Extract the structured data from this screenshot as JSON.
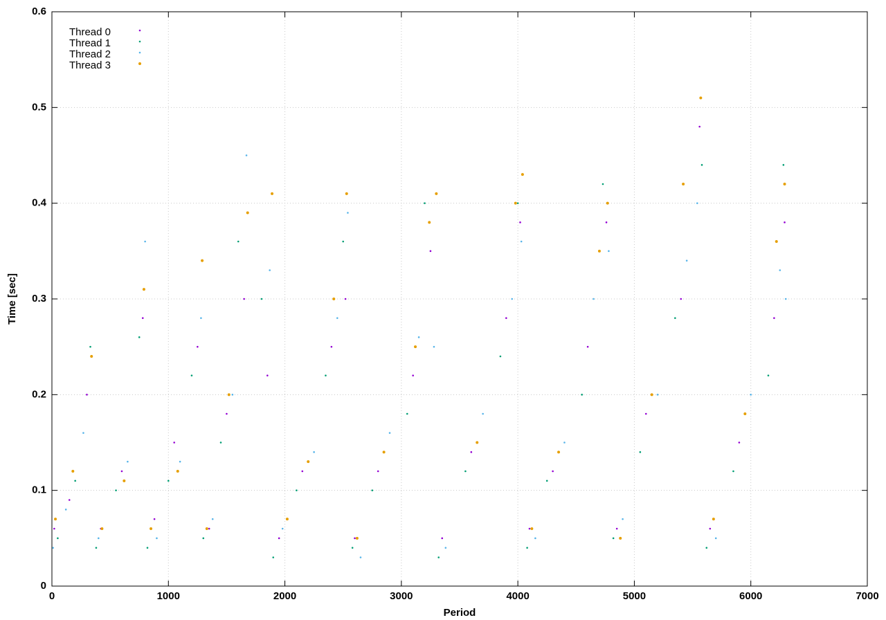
{
  "chart_data": {
    "type": "scatter",
    "xlabel": "Period",
    "ylabel": "Time [sec]",
    "xlim": [
      0,
      7000
    ],
    "xticks": [
      0,
      1000,
      2000,
      3000,
      4000,
      5000,
      6000,
      7000
    ],
    "ylim": [
      0,
      0.6
    ],
    "yticks": [
      0,
      0.1,
      0.2,
      0.3,
      0.4,
      0.5,
      0.6
    ],
    "grid": true,
    "legend": "top-left",
    "series": [
      {
        "name": "Thread 0",
        "color": "#9400d3",
        "x": [
          20,
          150,
          300,
          420,
          600,
          780,
          880,
          1050,
          1250,
          1350,
          1500,
          1650,
          1850,
          1950,
          2150,
          2400,
          2520,
          2600,
          2800,
          3100,
          3250,
          3350,
          3600,
          3900,
          4020,
          4100,
          4300,
          4600,
          4760,
          4850,
          5100,
          5400,
          5560,
          5650,
          5900,
          6200,
          6290
        ],
        "values": [
          0.06,
          0.09,
          0.2,
          0.06,
          0.12,
          0.28,
          0.07,
          0.15,
          0.25,
          0.06,
          0.18,
          0.3,
          0.22,
          0.05,
          0.12,
          0.25,
          0.3,
          0.05,
          0.12,
          0.22,
          0.35,
          0.05,
          0.14,
          0.28,
          0.38,
          0.06,
          0.12,
          0.25,
          0.38,
          0.06,
          0.18,
          0.3,
          0.48,
          0.06,
          0.15,
          0.28,
          0.38
        ]
      },
      {
        "name": "Thread 1",
        "color": "#009e73",
        "x": [
          50,
          200,
          330,
          380,
          550,
          750,
          820,
          1000,
          1200,
          1300,
          1450,
          1600,
          1800,
          1900,
          2100,
          2350,
          2500,
          2580,
          2750,
          3050,
          3200,
          3320,
          3550,
          3850,
          4000,
          4080,
          4250,
          4550,
          4730,
          4820,
          5050,
          5350,
          5580,
          5620,
          5850,
          6150,
          6280
        ],
        "values": [
          0.05,
          0.11,
          0.25,
          0.04,
          0.1,
          0.26,
          0.04,
          0.11,
          0.22,
          0.05,
          0.15,
          0.36,
          0.3,
          0.03,
          0.1,
          0.22,
          0.36,
          0.04,
          0.1,
          0.18,
          0.4,
          0.03,
          0.12,
          0.24,
          0.4,
          0.04,
          0.11,
          0.2,
          0.42,
          0.05,
          0.14,
          0.28,
          0.44,
          0.04,
          0.12,
          0.22,
          0.44
        ]
      },
      {
        "name": "Thread 2",
        "color": "#56b4e9",
        "x": [
          10,
          120,
          270,
          400,
          650,
          800,
          900,
          1100,
          1280,
          1380,
          1550,
          1670,
          1870,
          1980,
          2250,
          2450,
          2540,
          2650,
          2900,
          3150,
          3280,
          3380,
          3700,
          3950,
          4030,
          4150,
          4400,
          4650,
          4780,
          4900,
          5200,
          5450,
          5540,
          5700,
          6000,
          6250,
          6300
        ],
        "values": [
          0.04,
          0.08,
          0.16,
          0.05,
          0.13,
          0.36,
          0.05,
          0.13,
          0.28,
          0.07,
          0.2,
          0.45,
          0.33,
          0.06,
          0.14,
          0.28,
          0.39,
          0.03,
          0.16,
          0.26,
          0.25,
          0.04,
          0.18,
          0.3,
          0.36,
          0.05,
          0.15,
          0.3,
          0.35,
          0.07,
          0.2,
          0.34,
          0.4,
          0.05,
          0.2,
          0.33,
          0.3
        ]
      },
      {
        "name": "Thread 3",
        "color": "#e69f00",
        "x": [
          30,
          180,
          340,
          430,
          620,
          790,
          850,
          1080,
          1290,
          1330,
          1520,
          1680,
          1890,
          2020,
          2200,
          2420,
          2530,
          2620,
          2850,
          3120,
          3240,
          3300,
          3650,
          3980,
          4040,
          4120,
          4350,
          4700,
          4770,
          4880,
          5150,
          5420,
          5570,
          5680,
          5950,
          6220,
          6290
        ],
        "values": [
          0.07,
          0.12,
          0.24,
          0.06,
          0.11,
          0.31,
          0.06,
          0.12,
          0.34,
          0.06,
          0.2,
          0.39,
          0.41,
          0.07,
          0.13,
          0.3,
          0.41,
          0.05,
          0.14,
          0.25,
          0.38,
          0.41,
          0.15,
          0.4,
          0.43,
          0.06,
          0.14,
          0.35,
          0.4,
          0.05,
          0.2,
          0.42,
          0.51,
          0.07,
          0.18,
          0.36,
          0.42
        ]
      }
    ]
  }
}
